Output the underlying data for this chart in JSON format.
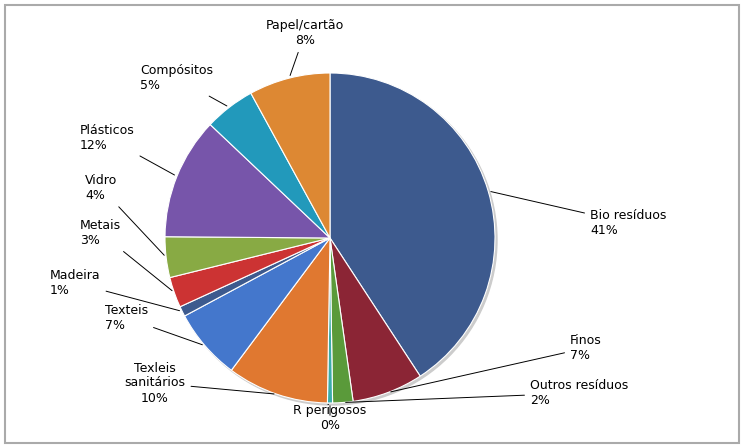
{
  "labels": [
    "Bio resíduos",
    "Finos",
    "Outros resíduos",
    "R perigosos",
    "Texleis\nsanitários",
    "Texteis",
    "Madeira",
    "Metais",
    "Vidro",
    "Plásticos",
    "Compósitos",
    "Papel/cartão"
  ],
  "pct_labels": [
    "41%",
    "7%",
    "2%",
    "0%",
    "10%",
    "7%",
    "1%",
    "3%",
    "4%",
    "12%",
    "5%",
    "8%"
  ],
  "values": [
    41,
    7,
    2,
    0.5,
    10,
    7,
    1,
    3,
    4,
    12,
    5,
    8
  ],
  "colors": [
    "#3d5a8e",
    "#8b2535",
    "#5a9a3a",
    "#3aacaa",
    "#e07830",
    "#4477cc",
    "#3d5a8e",
    "#cc3333",
    "#88aa44",
    "#7755aa",
    "#2299bb",
    "#dd8833"
  ],
  "background_color": "#ffffff",
  "border_color": "#aaaaaa"
}
